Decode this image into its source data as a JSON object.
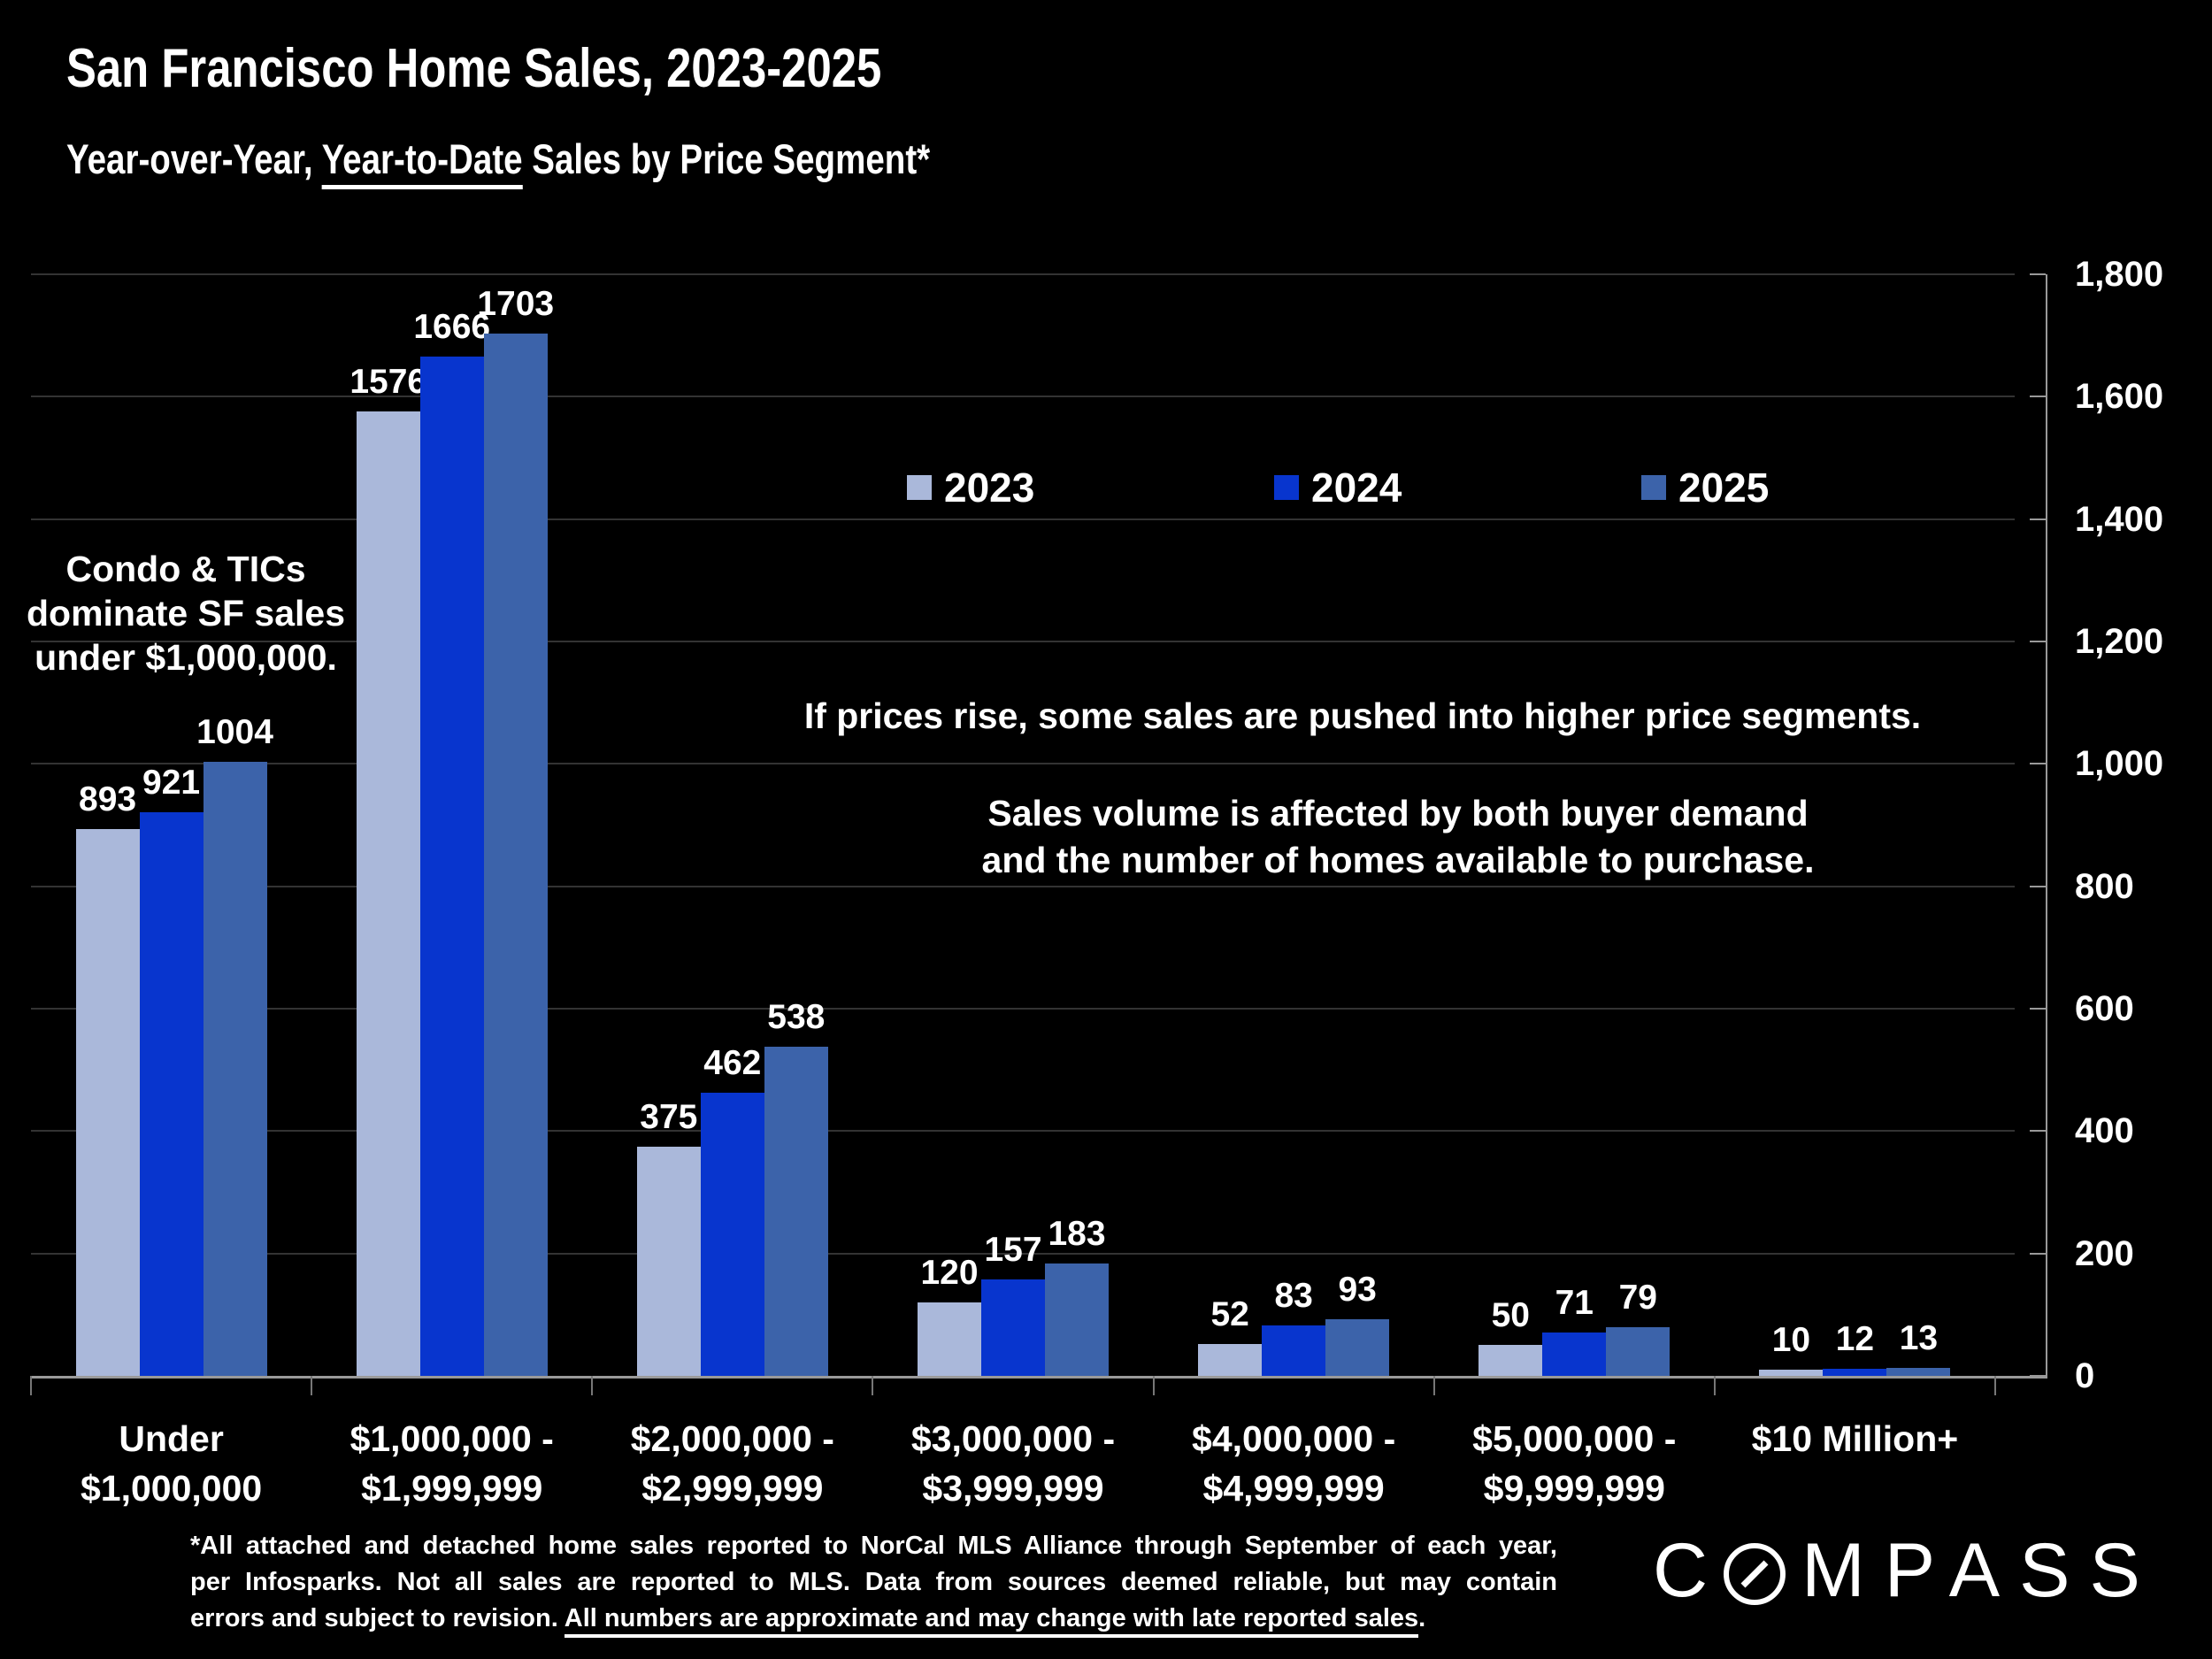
{
  "slide": {
    "subtitle": {
      "before": "Year-over-Year, ",
      "underlined": "Year-to-Date",
      "after": " Sales by Price Segment*"
    }
  },
  "legend": {
    "items": [
      {
        "label": "2023",
        "color": "#aab8da"
      },
      {
        "label": "2024",
        "color": "#0835ce"
      },
      {
        "label": "2025",
        "color": "#3c63aa"
      }
    ]
  },
  "annotations": {
    "left": [
      "Condo & TICs",
      "dominate SF sales",
      "under $1,000,000."
    ],
    "center1": "If prices rise, some sales are pushed into higher price segments.",
    "center2": [
      "Sales volume is affected by both buyer demand",
      "and the number of homes available to purchase."
    ]
  },
  "chart_data": {
    "type": "bar",
    "title": "San Francisco Home Sales, 2023-2025",
    "subtitle": "Year-over-Year, Year-to-Date Sales by Price Segment*",
    "categories": [
      [
        "Under",
        "$1,000,000"
      ],
      [
        "$1,000,000 -",
        "$1,999,999"
      ],
      [
        "$2,000,000 -",
        "$2,999,999"
      ],
      [
        "$3,000,000 -",
        "$3,999,999"
      ],
      [
        "$4,000,000 -",
        "$4,999,999"
      ],
      [
        "$5,000,000 -",
        "$9,999,999"
      ],
      [
        "$10 Million+"
      ]
    ],
    "series": [
      {
        "name": "2023",
        "color": "#aab8da",
        "values": [
          893,
          1576,
          375,
          120,
          52,
          50,
          10
        ]
      },
      {
        "name": "2024",
        "color": "#0835ce",
        "values": [
          921,
          1666,
          462,
          157,
          83,
          71,
          12
        ]
      },
      {
        "name": "2025",
        "color": "#3c63aa",
        "values": [
          1004,
          1703,
          538,
          183,
          93,
          79,
          13
        ]
      }
    ],
    "ylim": [
      0,
      1800
    ],
    "ytick_interval": 200,
    "ytick_labels": [
      "0",
      "200",
      "400",
      "600",
      "800",
      "1,000",
      "1,200",
      "1,400",
      "1,600",
      "1,800"
    ],
    "grid": true,
    "legend_position": "top-center",
    "axis_side": "right",
    "grid_color": "#333333",
    "axis_color": "#999999",
    "background_color": "#000000",
    "label_color": "#ffffff"
  },
  "footnote": {
    "line1": "*All attached and detached home sales reported to NorCal MLS Alliance through September of each year,",
    "line2": "per Infosparks. Not all sales are reported to MLS. Data from sources deemed reliable, but may contain",
    "line3_before": "errors and subject to revision. ",
    "line3_underlined": "All numbers are approximate and may change with late reported sales",
    "line3_after": "."
  },
  "logo": {
    "c": "C",
    "rest": "MPASS"
  }
}
